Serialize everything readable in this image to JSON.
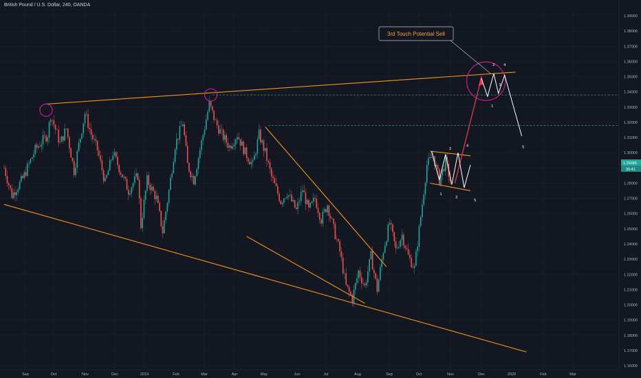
{
  "header": {
    "title": "British Pound / U.S. Dollar, 240, OANDA"
  },
  "annotation": {
    "callout": "3rd Touch Potential Sell"
  },
  "price_tag": {
    "price": "1.29285",
    "countdown": "30:41"
  },
  "colors": {
    "background": "#131722",
    "candle_up": "#26a69a",
    "candle_down": "#ef5350",
    "trend": "#f7941d",
    "circle": "#d81b9a",
    "support": "#2e9e47",
    "red_arrow": "#e53950",
    "white_path": "#ffffff"
  },
  "chart_data": {
    "type": "candlestick",
    "title": "British Pound / U.S. Dollar, 240, OANDA",
    "y_axis_ticks": [
      "1.39000",
      "1.38000",
      "1.37000",
      "1.36000",
      "1.35000",
      "1.34000",
      "1.33000",
      "1.32000",
      "1.31000",
      "1.30000",
      "1.29000",
      "1.28000",
      "1.27000",
      "1.26000",
      "1.25000",
      "1.24000",
      "1.23000",
      "1.22000",
      "1.21000",
      "1.20000",
      "1.19000",
      "1.18000",
      "1.17000",
      "1.16000"
    ],
    "y_axis_values": [
      1.39,
      1.38,
      1.37,
      1.36,
      1.35,
      1.34,
      1.33,
      1.32,
      1.31,
      1.3,
      1.29,
      1.28,
      1.27,
      1.26,
      1.25,
      1.24,
      1.23,
      1.22,
      1.21,
      1.2,
      1.19,
      1.18,
      1.17,
      1.16
    ],
    "x_axis_ticks": [
      "Sep",
      "Oct",
      "Nov",
      "Dec",
      "2019",
      "Feb",
      "Mar",
      "Apr",
      "May",
      "Jun",
      "Jul",
      "Aug",
      "Sep",
      "Oct",
      "Nov",
      "Dec",
      "2020",
      "Feb",
      "Mar"
    ],
    "ylim": [
      1.16,
      1.395
    ],
    "price_path": [
      [
        0,
        1.29
      ],
      [
        5,
        1.272
      ],
      [
        12,
        1.283
      ],
      [
        20,
        1.302
      ],
      [
        28,
        1.312
      ],
      [
        30,
        1.325
      ],
      [
        36,
        1.306
      ],
      [
        40,
        1.316
      ],
      [
        45,
        1.288
      ],
      [
        48,
        1.305
      ],
      [
        52,
        1.326
      ],
      [
        56,
        1.312
      ],
      [
        60,
        1.302
      ],
      [
        65,
        1.28
      ],
      [
        70,
        1.3
      ],
      [
        74,
        1.29
      ],
      [
        80,
        1.275
      ],
      [
        86,
        1.285
      ],
      [
        88,
        1.252
      ],
      [
        92,
        1.282
      ],
      [
        98,
        1.27
      ],
      [
        102,
        1.248
      ],
      [
        106,
        1.275
      ],
      [
        110,
        1.305
      ],
      [
        115,
        1.32
      ],
      [
        118,
        1.292
      ],
      [
        122,
        1.282
      ],
      [
        128,
        1.312
      ],
      [
        132,
        1.332
      ],
      [
        136,
        1.32
      ],
      [
        140,
        1.312
      ],
      [
        145,
        1.304
      ],
      [
        150,
        1.312
      ],
      [
        155,
        1.3
      ],
      [
        160,
        1.292
      ],
      [
        164,
        1.312
      ],
      [
        168,
        1.3
      ],
      [
        172,
        1.284
      ],
      [
        178,
        1.268
      ],
      [
        182,
        1.274
      ],
      [
        188,
        1.262
      ],
      [
        192,
        1.276
      ],
      [
        196,
        1.262
      ],
      [
        200,
        1.27
      ],
      [
        204,
        1.256
      ],
      [
        208,
        1.266
      ],
      [
        212,
        1.25
      ],
      [
        216,
        1.235
      ],
      [
        220,
        1.212
      ],
      [
        224,
        1.204
      ],
      [
        228,
        1.222
      ],
      [
        232,
        1.212
      ],
      [
        236,
        1.232
      ],
      [
        240,
        1.21
      ],
      [
        244,
        1.236
      ],
      [
        248,
        1.254
      ],
      [
        252,
        1.236
      ],
      [
        256,
        1.246
      ],
      [
        260,
        1.232
      ],
      [
        264,
        1.224
      ],
      [
        268,
        1.258
      ],
      [
        272,
        1.292
      ],
      [
        276,
        1.298
      ],
      [
        280,
        1.282
      ],
      [
        284,
        1.294
      ],
      [
        288,
        1.278
      ]
    ],
    "trendlines": [
      {
        "name": "upper-resistance",
        "from": [
          27,
          1.332
        ],
        "to": [
          329,
          1.353
        ]
      },
      {
        "name": "lower-support",
        "from": [
          0,
          1.266
        ],
        "to": [
          336,
          1.169
        ]
      },
      {
        "name": "channel-upper",
        "from": [
          168,
          1.317
        ],
        "to": [
          246,
          1.225
        ]
      },
      {
        "name": "channel-lower",
        "from": [
          156,
          1.245
        ],
        "to": [
          232,
          1.201
        ]
      },
      {
        "name": "flag-upper",
        "from": [
          274,
          1.301
        ],
        "to": [
          300,
          1.298
        ]
      },
      {
        "name": "flag-lower",
        "from": [
          274,
          1.28
        ],
        "to": [
          300,
          1.275
        ]
      }
    ],
    "support_levels": [
      1.338,
      1.318
    ],
    "circles": [
      [
        27,
        1.328
      ],
      [
        133,
        1.338
      ],
      [
        310,
        1.347
      ]
    ],
    "wave_labels": {
      "flag": [
        "1",
        "2",
        "3",
        "4",
        "5"
      ],
      "top": [
        "1",
        "2",
        "3",
        "4"
      ],
      "projection": "5"
    }
  }
}
